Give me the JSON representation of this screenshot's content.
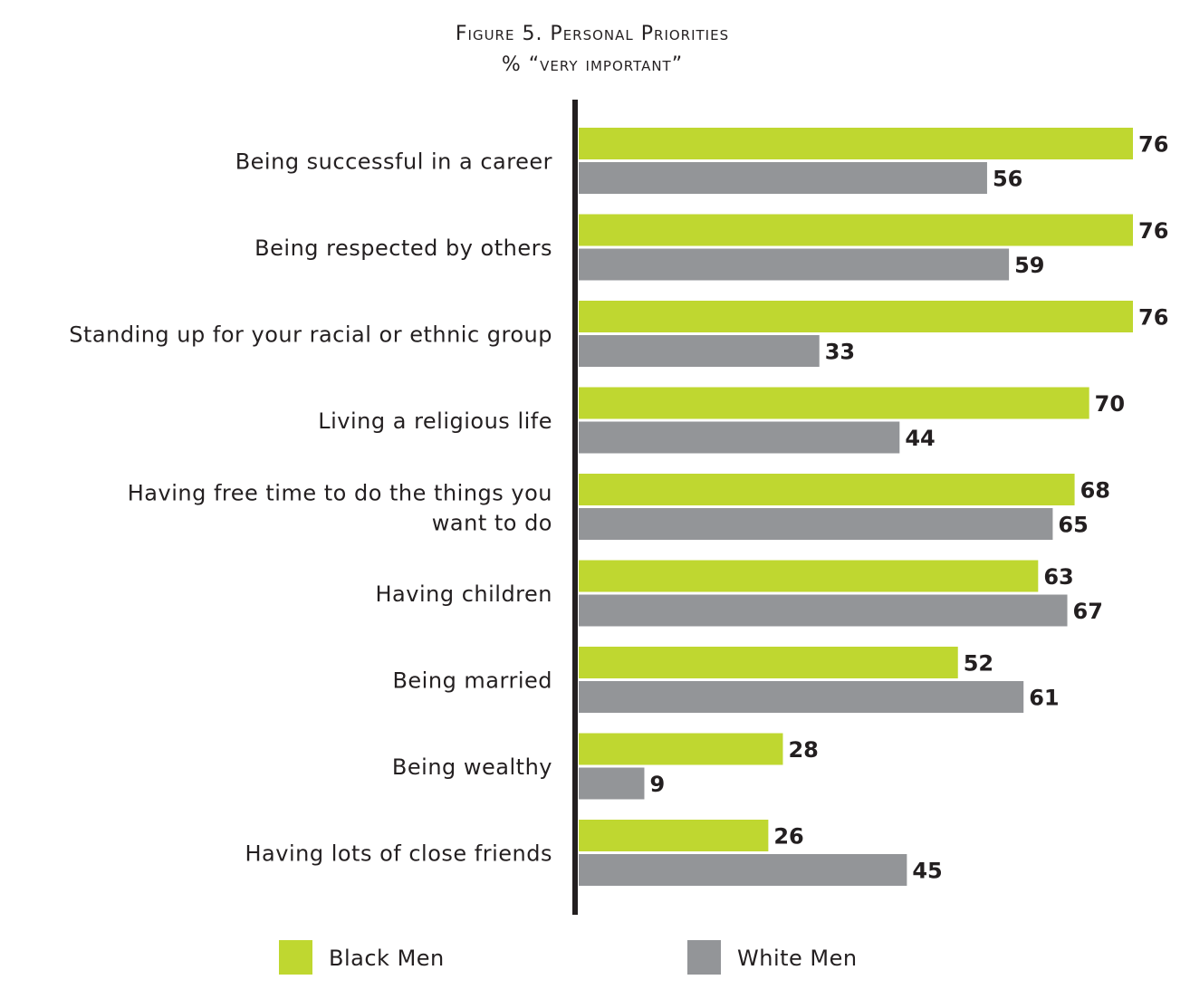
{
  "chart_data": {
    "type": "bar",
    "orientation": "horizontal",
    "title": "Figure 5. Personal Priorities",
    "subtitle": "% “very important”",
    "categories": [
      [
        "Being successful in a career"
      ],
      [
        "Being respected by others"
      ],
      [
        "Standing up for your racial or ethnic group"
      ],
      [
        "Living a religious life"
      ],
      [
        "Having free time to do the things you",
        "want to do"
      ],
      [
        "Having children"
      ],
      [
        "Being married"
      ],
      [
        "Being wealthy"
      ],
      [
        "Having lots of close friends"
      ]
    ],
    "series": [
      {
        "name": "Black Men",
        "color": "#bfd730",
        "values": [
          76,
          76,
          76,
          70,
          68,
          63,
          52,
          28,
          26
        ]
      },
      {
        "name": "White Men",
        "color": "#939598",
        "values": [
          56,
          59,
          33,
          44,
          65,
          67,
          61,
          9,
          45
        ]
      }
    ],
    "xlim": [
      0,
      76
    ],
    "grid": false,
    "data_labels": true,
    "legend_position": "bottom"
  }
}
